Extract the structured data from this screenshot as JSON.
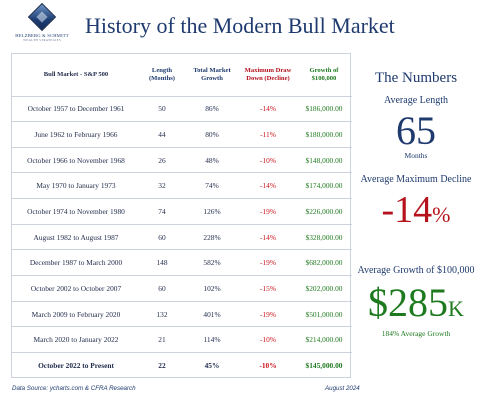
{
  "logo": {
    "firm": "HELZBERG & SCHMITT",
    "tagline": "WEALTH STRATEGIES"
  },
  "title": "History of the Modern Bull Market",
  "table": {
    "headers": {
      "market": "Bull Market - S&P 500",
      "length": "Length (Months)",
      "growth": "Total Market Growth",
      "drawdown": "Maximum Draw Down (Decline)",
      "value": "Growth of $100,000"
    },
    "rows": [
      {
        "period": "October 1957 to December 1961",
        "length": "50",
        "growth": "86%",
        "drawdown": "-14%",
        "value": "$186,000.00",
        "bold": false
      },
      {
        "period": "June 1962 to February 1966",
        "length": "44",
        "growth": "80%",
        "drawdown": "-11%",
        "value": "$180,000.00",
        "bold": false
      },
      {
        "period": "October 1966 to November 1968",
        "length": "26",
        "growth": "48%",
        "drawdown": "-10%",
        "value": "$148,000.00",
        "bold": false
      },
      {
        "period": "May 1970 to January 1973",
        "length": "32",
        "growth": "74%",
        "drawdown": "-14%",
        "value": "$174,000.00",
        "bold": false
      },
      {
        "period": "October 1974 to November 1980",
        "length": "74",
        "growth": "126%",
        "drawdown": "-19%",
        "value": "$226,000.00",
        "bold": false
      },
      {
        "period": "August 1982 to August 1987",
        "length": "60",
        "growth": "228%",
        "drawdown": "-14%",
        "value": "$328,000.00",
        "bold": false
      },
      {
        "period": "December 1987 to March 2000",
        "length": "148",
        "growth": "582%",
        "drawdown": "-19%",
        "value": "$682,000.00",
        "bold": false
      },
      {
        "period": "October 2002 to October 2007",
        "length": "60",
        "growth": "102%",
        "drawdown": "-15%",
        "value": "$202,000.00",
        "bold": false
      },
      {
        "period": "March 2009 to February 2020",
        "length": "132",
        "growth": "401%",
        "drawdown": "-19%",
        "value": "$501,000.00",
        "bold": false
      },
      {
        "period": "March 2020 to January 2022",
        "length": "21",
        "growth": "114%",
        "drawdown": "-10%",
        "value": "$214,000.00",
        "bold": false
      },
      {
        "period": "October 2022 to Present",
        "length": "22",
        "growth": "45%",
        "drawdown": "-10%",
        "value": "$145,000.00",
        "bold": true
      }
    ]
  },
  "numbers": {
    "title": "The Numbers",
    "avg_length_label": "Average Length",
    "avg_length_value": "65",
    "avg_length_unit": "Months",
    "avg_decline_label": "Average Maximum Decline",
    "avg_decline_value": "-14",
    "avg_decline_unit": "%",
    "avg_growth_label": "Average Growth of $100,000",
    "avg_growth_value": "$285",
    "avg_growth_unit": "K",
    "avg_growth_note": "184% Average Growth"
  },
  "footer": {
    "source": "Data Source: ycharts.com & CFRA Research",
    "date": "August 2024"
  },
  "colors": {
    "navy": "#1e3a6e",
    "red": "#b5121b",
    "green": "#1e7a1e"
  }
}
